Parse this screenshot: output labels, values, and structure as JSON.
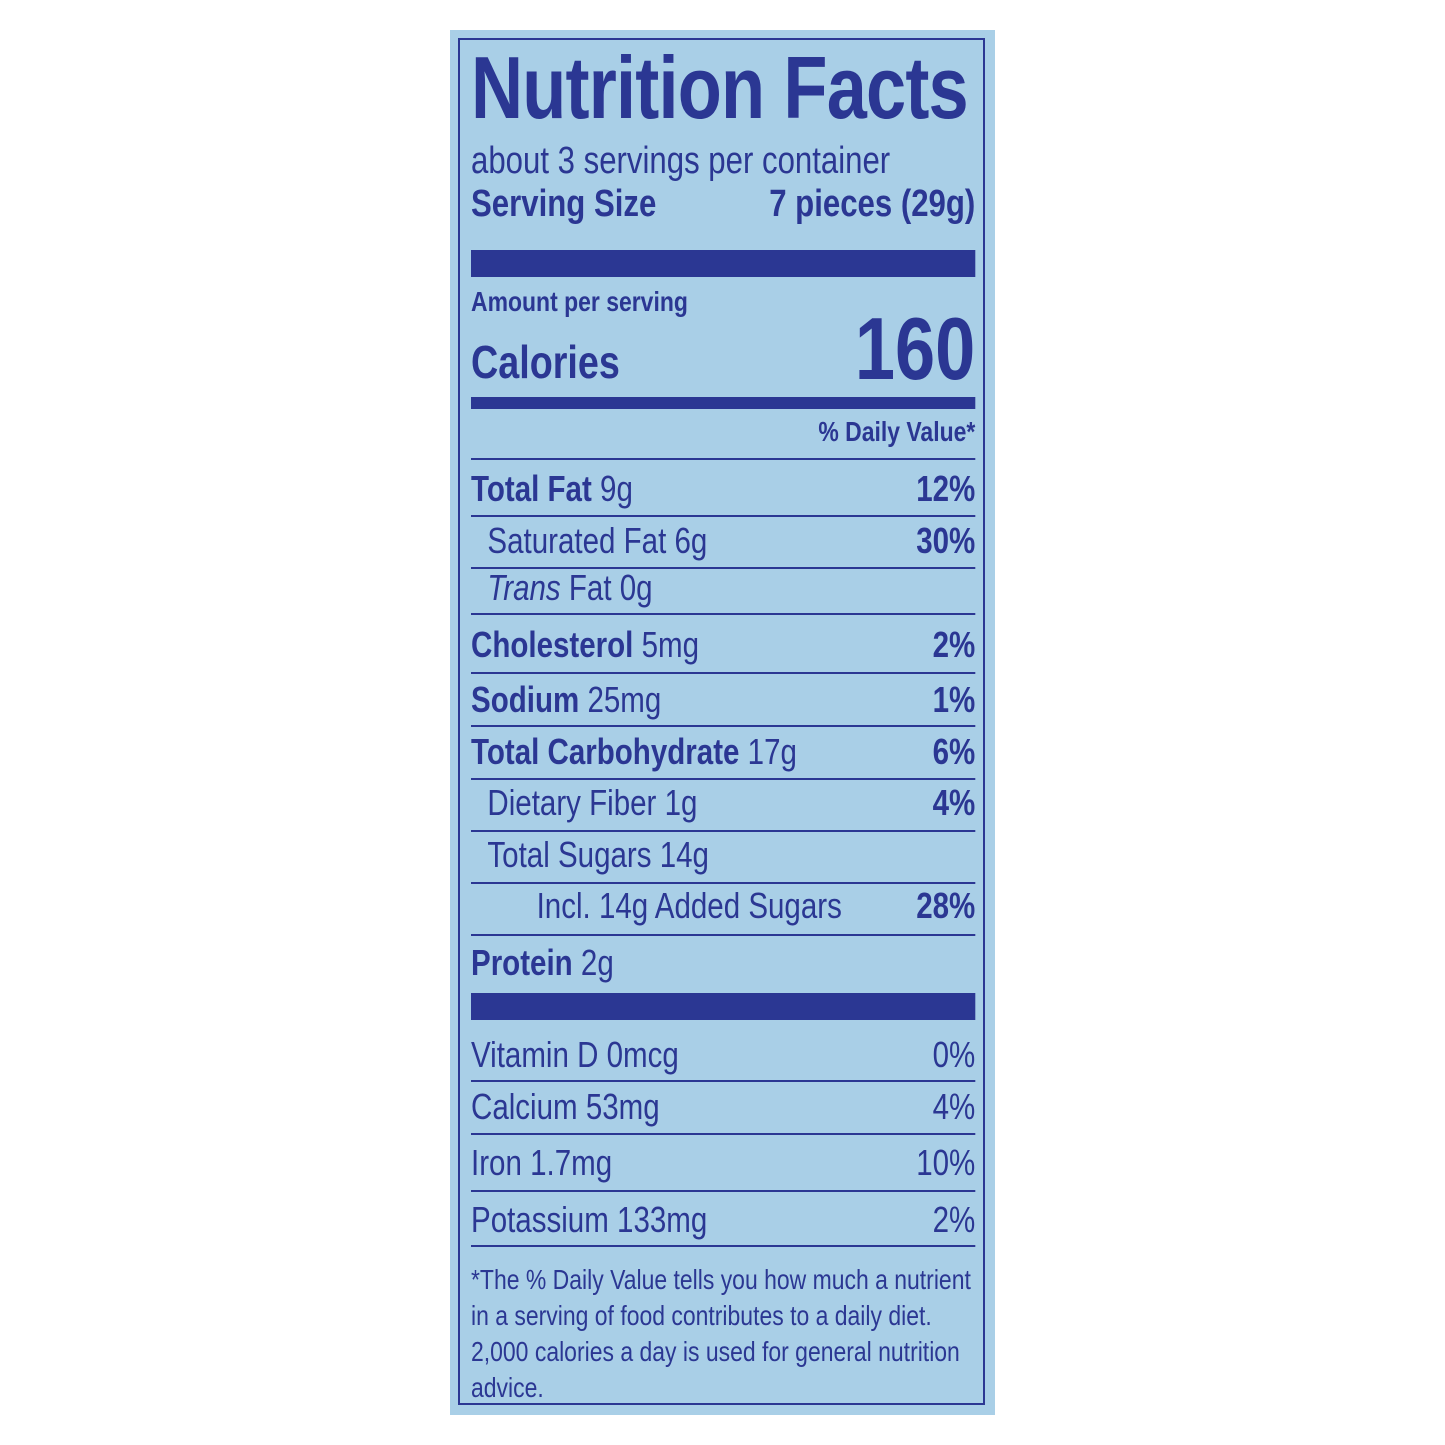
{
  "colors": {
    "background": "#a9cfe7",
    "ink": "#2b3793"
  },
  "title": "Nutrition Facts",
  "servings_per_container": "about 3 servings per container",
  "serving_size": {
    "label": "Serving Size",
    "value": "7 pieces (29g)"
  },
  "amount_per_serving": "Amount per serving",
  "calories": {
    "label": "Calories",
    "value": "160"
  },
  "daily_value_header": "% Daily Value*",
  "nutrients": [
    {
      "name": "Total Fat",
      "amount": "9g",
      "dv": "12%",
      "bold": true,
      "indent": 0
    },
    {
      "name": "Saturated Fat",
      "amount": "6g",
      "dv": "30%",
      "bold": false,
      "indent": 1
    },
    {
      "name": "Trans",
      "name_suffix": "Fat",
      "amount": "0g",
      "dv": "",
      "bold": false,
      "indent": 1
    },
    {
      "name": "Cholesterol",
      "amount": "5mg",
      "dv": "2%",
      "bold": true,
      "indent": 0
    },
    {
      "name": "Sodium",
      "amount": "25mg",
      "dv": "1%",
      "bold": true,
      "indent": 0
    },
    {
      "name": "Total Carbohydrate",
      "amount": "17g",
      "dv": "6%",
      "bold": true,
      "indent": 0
    },
    {
      "name": "Dietary Fiber",
      "amount": "1g",
      "dv": "4%",
      "bold": false,
      "indent": 1
    },
    {
      "name": "Total Sugars",
      "amount": "14g",
      "dv": "",
      "bold": false,
      "indent": 1
    },
    {
      "name": "Incl. 14g Added Sugars",
      "amount": "",
      "dv": "28%",
      "bold": false,
      "indent": 2
    },
    {
      "name": "Protein",
      "amount": "2g",
      "dv": "",
      "bold": true,
      "indent": 0
    }
  ],
  "vitamins": [
    {
      "name": "Vitamin D",
      "amount": "0mcg",
      "dv": "0%"
    },
    {
      "name": "Calcium",
      "amount": "53mg",
      "dv": "4%"
    },
    {
      "name": "Iron",
      "amount": "1.7mg",
      "dv": "10%"
    },
    {
      "name": "Potassium",
      "amount": "133mg",
      "dv": "2%"
    }
  ],
  "footnote": "*The % Daily Value tells you how much a nutrient in a serving of food contributes to a daily diet. 2,000 calories a day is used for general nutrition advice."
}
